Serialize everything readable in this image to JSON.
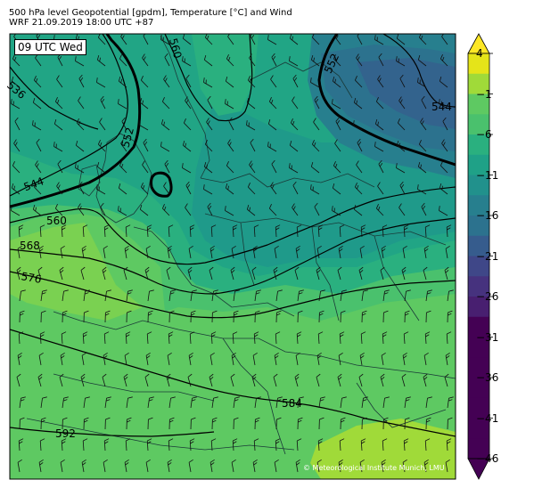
{
  "header": {
    "title": "500 hPa level Geopotential [gpdm], Temperature [°C] and Wind",
    "subtitle": "WRF 21.09.2019 18:00 UTC +87"
  },
  "time_label": "09 UTC Wed",
  "credit": "© Meteorological Institute Munich, LMU",
  "colorbar": {
    "ticks": [
      "4",
      "−1",
      "−6",
      "−11",
      "−16",
      "−21",
      "−26",
      "−31",
      "−36",
      "−41",
      "−46"
    ],
    "colors": [
      "#fde725",
      "#a0da39",
      "#4ac16d",
      "#1fa187",
      "#277f8e",
      "#365c8d",
      "#46327e",
      "#440154"
    ]
  },
  "contour_labels": [
    {
      "text": "536"
    },
    {
      "text": "544"
    },
    {
      "text": "552"
    },
    {
      "text": "560"
    },
    {
      "text": "568"
    },
    {
      "text": "576"
    },
    {
      "text": "584"
    },
    {
      "text": "592"
    },
    {
      "text": "560"
    },
    {
      "text": "552"
    },
    {
      "text": "544"
    }
  ],
  "map_colors": {
    "warm_south": "#5ec962",
    "mild": "#4ac16d",
    "central": "#2ab07f",
    "cool": "#21a585",
    "cold_center": "#1f9a8a",
    "cold_ne": "#277f8e",
    "very_cold": "#2c728e",
    "coldest": "#33638d",
    "warm_patch": "#a0da39",
    "light_patch": "#7ad151"
  }
}
